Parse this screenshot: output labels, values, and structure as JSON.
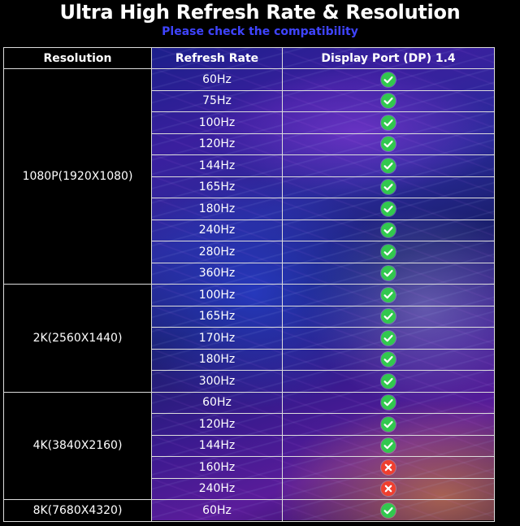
{
  "title": "Ultra High Refresh Rate & Resolution",
  "subtitle": "Please check the compatibility",
  "colors": {
    "subtitle": "#3f44ff",
    "supported": "#32c84e",
    "unsupported": "#ef3f2f"
  },
  "table": {
    "headers": [
      "Resolution",
      "Refresh Rate",
      "Display Port (DP) 1.4"
    ],
    "groups": [
      {
        "resolution": "1080P(1920X1080)",
        "rows": [
          {
            "rate": "60Hz",
            "status": "check-icon"
          },
          {
            "rate": "75Hz",
            "status": "check-icon"
          },
          {
            "rate": "100Hz",
            "status": "check-icon"
          },
          {
            "rate": "120Hz",
            "status": "check-icon"
          },
          {
            "rate": "144Hz",
            "status": "check-icon"
          },
          {
            "rate": "165Hz",
            "status": "check-icon"
          },
          {
            "rate": "180Hz",
            "status": "check-icon"
          },
          {
            "rate": "240Hz",
            "status": "check-icon"
          },
          {
            "rate": "280Hz",
            "status": "check-icon"
          },
          {
            "rate": "360Hz",
            "status": "check-icon"
          }
        ]
      },
      {
        "resolution": "2K(2560X1440)",
        "rows": [
          {
            "rate": "100Hz",
            "status": "check-icon"
          },
          {
            "rate": "165Hz",
            "status": "check-icon"
          },
          {
            "rate": "170Hz",
            "status": "check-icon"
          },
          {
            "rate": "180Hz",
            "status": "check-icon"
          },
          {
            "rate": "300Hz",
            "status": "check-icon"
          }
        ]
      },
      {
        "resolution": "4K(3840X2160)",
        "rows": [
          {
            "rate": "60Hz",
            "status": "check-icon"
          },
          {
            "rate": "120Hz",
            "status": "check-icon"
          },
          {
            "rate": "144Hz",
            "status": "check-icon"
          },
          {
            "rate": "160Hz",
            "status": "cross-icon"
          },
          {
            "rate": "240Hz",
            "status": "cross-icon"
          }
        ]
      },
      {
        "resolution": "8K(7680X4320)",
        "rows": [
          {
            "rate": "60Hz",
            "status": "check-icon"
          }
        ]
      }
    ]
  }
}
